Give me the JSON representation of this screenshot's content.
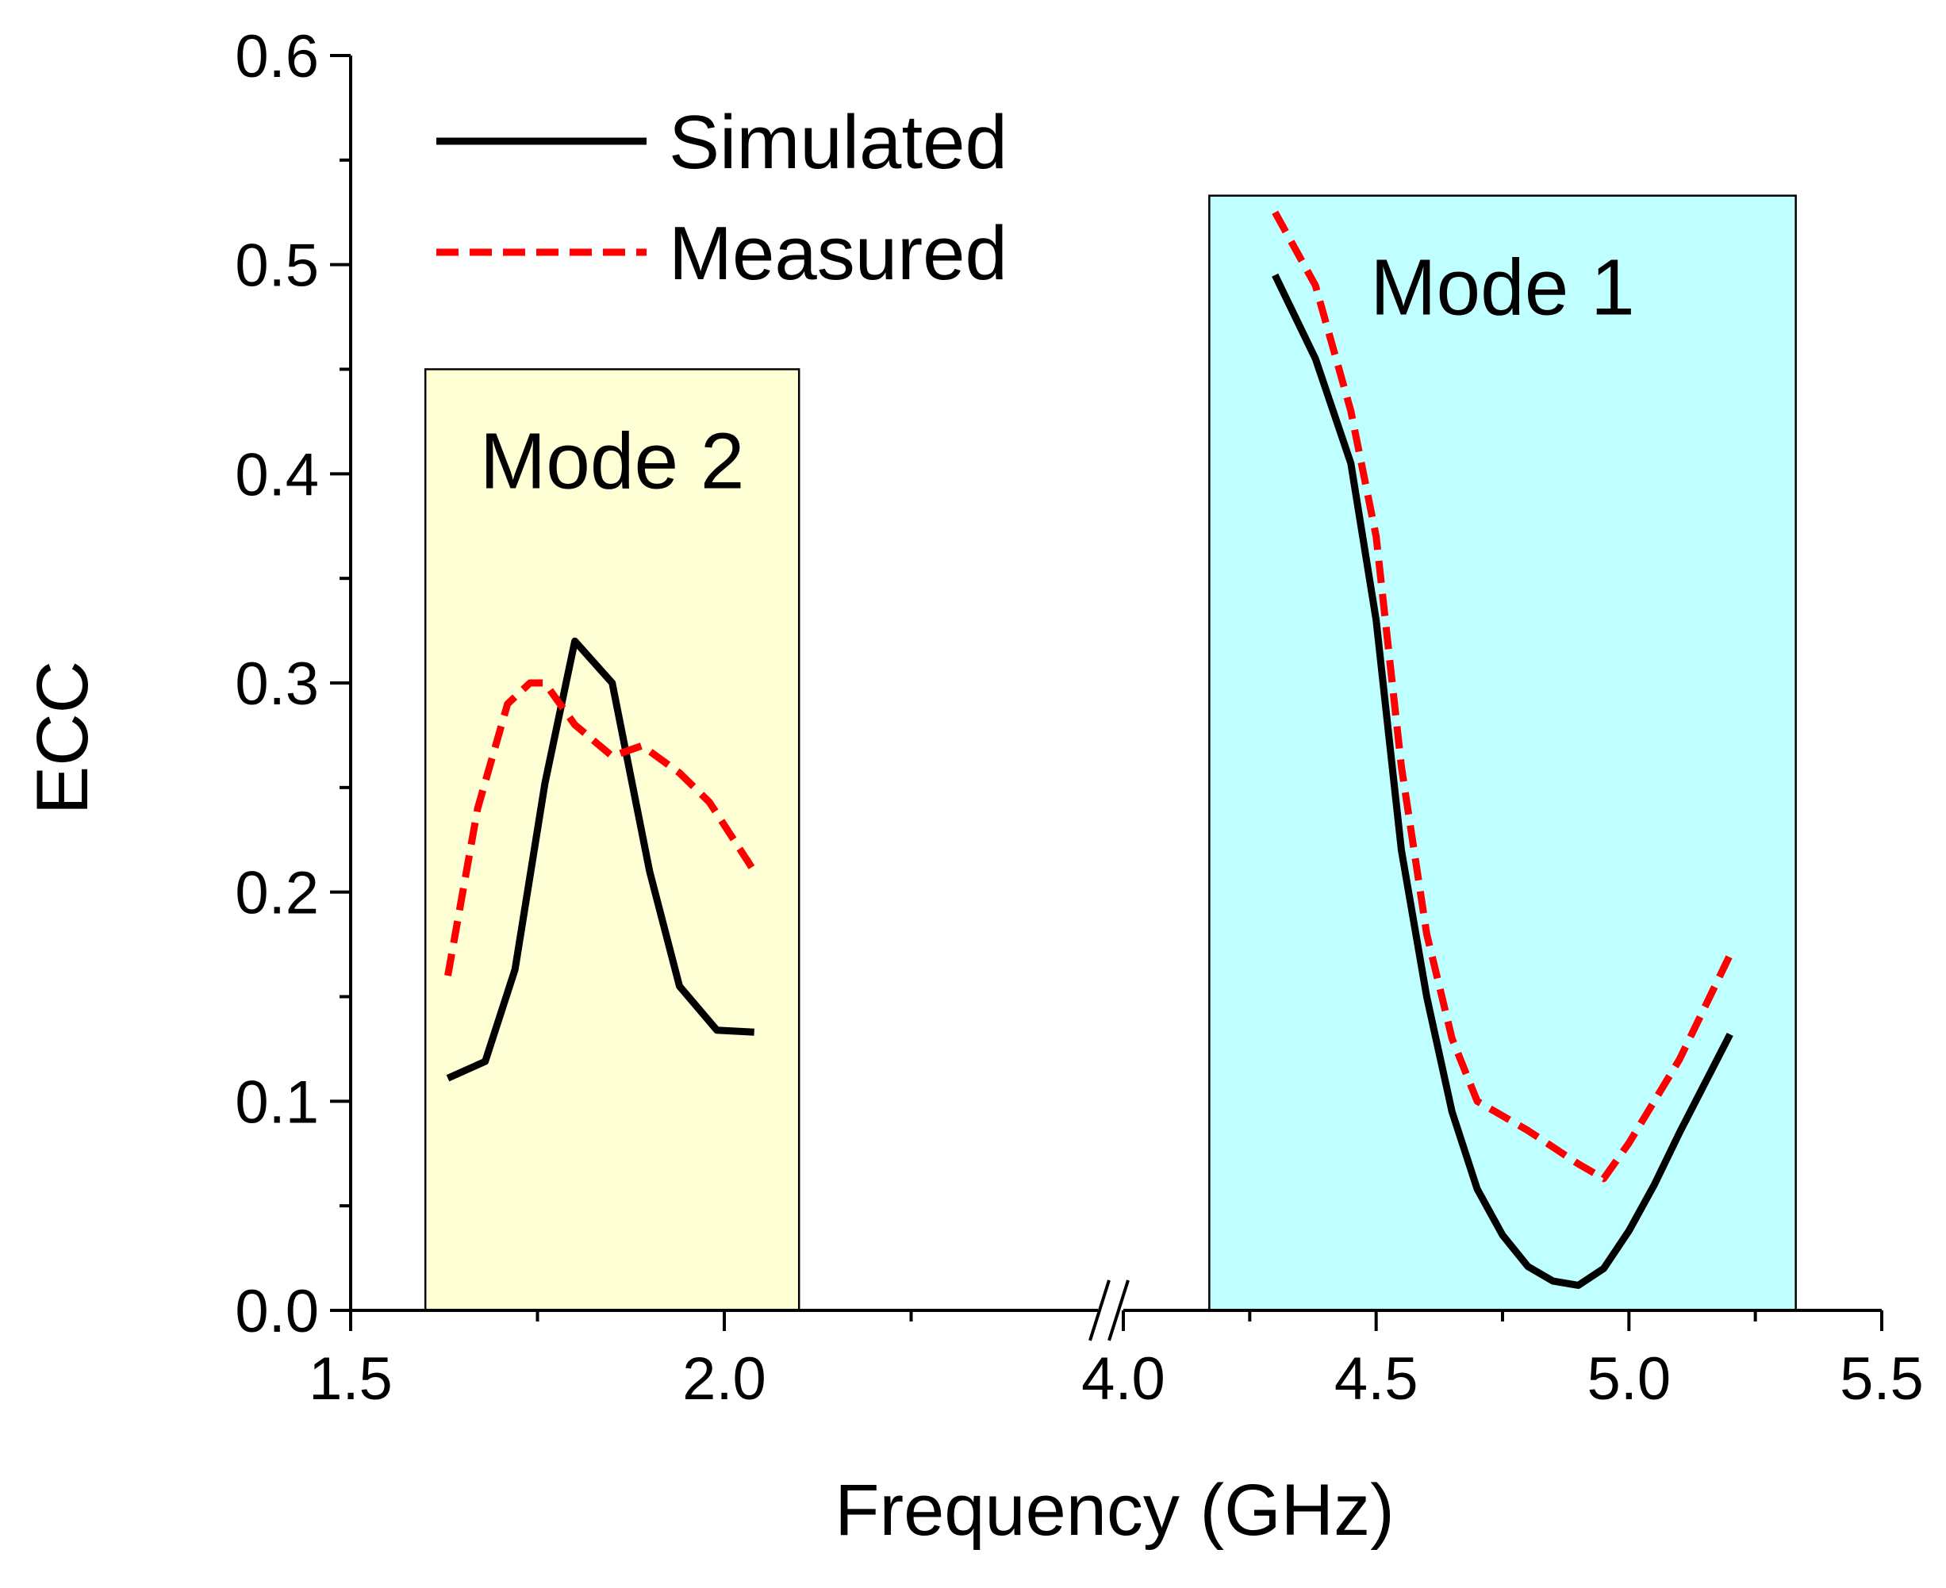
{
  "chart_data": {
    "type": "line",
    "xlabel": "Frequency (GHz)",
    "ylabel": "ECC",
    "ylim": [
      0,
      0.6
    ],
    "y_ticks": [
      "0.0",
      "0.1",
      "0.2",
      "0.3",
      "0.4",
      "0.5",
      "0.6"
    ],
    "x_segments": [
      {
        "range": [
          1.5,
          2.5
        ],
        "ticks": [
          "1.5",
          "2.0"
        ]
      },
      {
        "range": [
          4.0,
          5.5
        ],
        "ticks": [
          "4.0",
          "4.5",
          "5.0",
          "5.5"
        ]
      }
    ],
    "axis_break": "between 2.5 and 4.0 GHz",
    "grid": false,
    "legend_position": "top-left",
    "regions": [
      {
        "label": "Mode 2",
        "x_start": 1.6,
        "x_end": 2.1,
        "y_top": 0.45,
        "color": "#FFFFD5"
      },
      {
        "label": "Mode 1",
        "x_start": 4.17,
        "x_end": 5.33,
        "y_top": 0.533,
        "color": "#C0FFFF"
      }
    ],
    "series": [
      {
        "name": "Simulated",
        "color": "#000000",
        "style": "solid",
        "segments": [
          {
            "x": [
              1.63,
              1.68,
              1.72,
              1.76,
              1.8,
              1.85,
              1.9,
              1.94,
              1.99,
              2.04
            ],
            "y": [
              0.111,
              0.119,
              0.163,
              0.252,
              0.32,
              0.3,
              0.21,
              0.155,
              0.134,
              0.133
            ]
          },
          {
            "x": [
              4.3,
              4.38,
              4.45,
              4.5,
              4.55,
              4.6,
              4.65,
              4.7,
              4.75,
              4.8,
              4.85,
              4.9,
              4.95,
              5.0,
              5.05,
              5.1,
              5.2
            ],
            "y": [
              0.495,
              0.455,
              0.405,
              0.33,
              0.22,
              0.15,
              0.095,
              0.058,
              0.036,
              0.021,
              0.014,
              0.012,
              0.02,
              0.038,
              0.06,
              0.085,
              0.132
            ]
          }
        ]
      },
      {
        "name": "Measured",
        "color": "#FF0000",
        "style": "dashed",
        "segments": [
          {
            "x": [
              1.63,
              1.67,
              1.71,
              1.74,
              1.76,
              1.8,
              1.85,
              1.89,
              1.94,
              1.98,
              2.04
            ],
            "y": [
              0.16,
              0.24,
              0.29,
              0.3,
              0.3,
              0.28,
              0.265,
              0.27,
              0.257,
              0.243,
              0.21
            ]
          },
          {
            "x": [
              4.3,
              4.38,
              4.45,
              4.5,
              4.55,
              4.6,
              4.65,
              4.7,
              4.8,
              4.9,
              4.95,
              5.0,
              5.1,
              5.2
            ],
            "y": [
              0.525,
              0.49,
              0.43,
              0.37,
              0.26,
              0.18,
              0.13,
              0.1,
              0.086,
              0.07,
              0.063,
              0.08,
              0.12,
              0.17
            ]
          }
        ]
      }
    ]
  }
}
